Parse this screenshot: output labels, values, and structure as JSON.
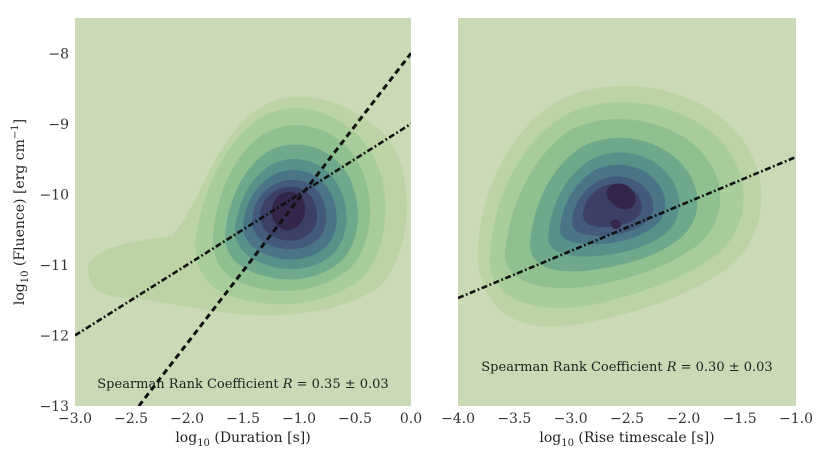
{
  "colors": {
    "background": "#cbdab6",
    "levels": [
      "#bcd4a5",
      "#a9cd9a",
      "#8fc08f",
      "#6fa98c",
      "#58918a",
      "#4a7586",
      "#435a7d",
      "#3c3f66",
      "#33264a"
    ],
    "line": "#111111"
  },
  "y_axis": {
    "label": "log10 (Fluence) [erg cm^-1]",
    "label_parts": {
      "func": "log",
      "sub": "10",
      "mid": " (Fluence) [erg cm",
      "sup": "−1",
      "end": "]"
    },
    "range": [
      -13,
      -7.5
    ],
    "ticks": [
      -13,
      -12,
      -11,
      -10,
      -9,
      -8
    ],
    "tick_labels": [
      "−13",
      "−12",
      "−11",
      "−10",
      "−9",
      "−8"
    ]
  },
  "chart_data": [
    {
      "type": "contour",
      "title": "",
      "xlabel": "log10 (Duration [s])",
      "xlabel_parts": {
        "func": "log",
        "sub": "10",
        "rest": " (Duration [s])"
      },
      "ylabel": "log10 (Fluence) [erg cm^-1]",
      "xlim": [
        -3.0,
        0.0
      ],
      "ylim": [
        -13,
        -7.5
      ],
      "x_ticks": [
        -3.0,
        -2.5,
        -2.0,
        -1.5,
        -1.0,
        -0.5,
        0.0
      ],
      "x_tick_labels": [
        "−3.0",
        "−2.5",
        "−2.0",
        "−1.5",
        "−1.0",
        "−0.5",
        "0.0"
      ],
      "density_peak": {
        "x": -1.15,
        "y": -10.25
      },
      "annotation": "Spearman Rank Coefficient R = 0.35 ± 0.03",
      "annotation_parts": {
        "pre": "Spearman Rank Coefficient ",
        "var": "R",
        "post": " = 0.35 ± 0.03"
      },
      "fit_lines": [
        {
          "name": "dotted fit",
          "style": "dashdot",
          "points": [
            [
              -3.0,
              -12.0
            ],
            [
              0.0,
              -9.0
            ]
          ]
        },
        {
          "name": "dashed fit",
          "style": "dashed",
          "points": [
            [
              -2.43,
              -13.0
            ],
            [
              0.0,
              -8.0
            ]
          ]
        }
      ]
    },
    {
      "type": "contour",
      "title": "",
      "xlabel": "log10 (Rise timescale [s])",
      "xlabel_parts": {
        "func": "log",
        "sub": "10",
        "rest": " (Rise timescale [s])"
      },
      "ylabel": "",
      "xlim": [
        -4.0,
        -1.0
      ],
      "ylim": [
        -13,
        -7.5
      ],
      "x_ticks": [
        -4.0,
        -3.5,
        -3.0,
        -2.5,
        -2.0,
        -1.5,
        -1.0
      ],
      "x_tick_labels": [
        "−4.0",
        "−3.5",
        "−3.0",
        "−2.5",
        "−2.0",
        "−1.5",
        "−1.0"
      ],
      "density_peak": {
        "x": -2.5,
        "y": -10.1
      },
      "annotation": "Spearman Rank Coefficient R = 0.30 ± 0.03",
      "annotation_parts": {
        "pre": "Spearman Rank Coefficient ",
        "var": "R",
        "post": " = 0.30 ± 0.03"
      },
      "fit_lines": [
        {
          "name": "dotted fit",
          "style": "dashdot",
          "points": [
            [
              -4.0,
              -11.47
            ],
            [
              -1.0,
              -9.47
            ]
          ]
        }
      ]
    }
  ]
}
